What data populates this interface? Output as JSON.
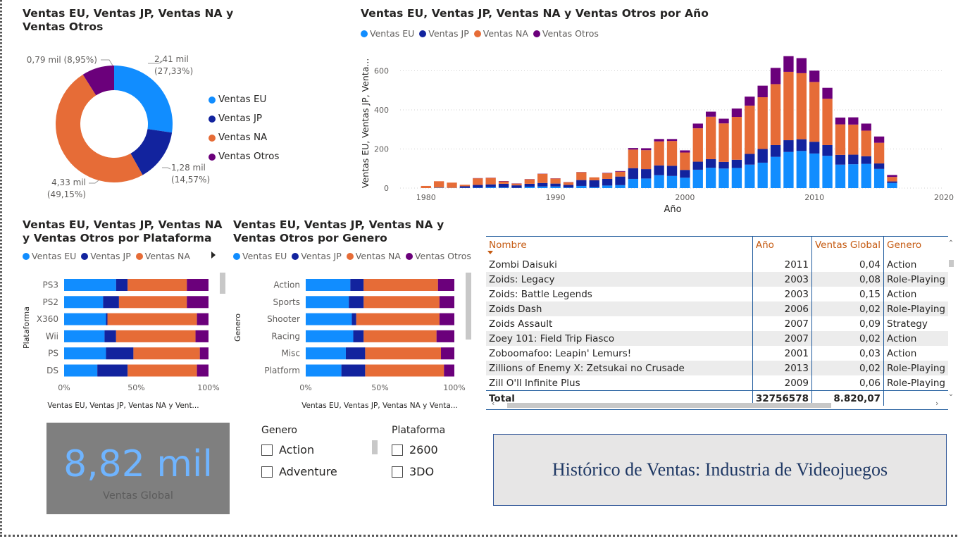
{
  "colors": {
    "eu": "#118dff",
    "jp": "#12239e",
    "na": "#e66c37",
    "otros": "#6b007b"
  },
  "legend_labels": {
    "eu": "Ventas EU",
    "jp": "Ventas JP",
    "na": "Ventas NA",
    "otros": "Ventas Otros"
  },
  "donut": {
    "title": "Ventas EU, Ventas JP, Ventas NA y Ventas Otros",
    "labels": {
      "otros": "0,79 mil (8,95%)",
      "eu_1": "2,41 mil",
      "eu_2": "(27,33%)",
      "jp_1": "1,28 mil",
      "jp_2": "(14,57%)",
      "na_1": "4,33 mil",
      "na_2": "(49,15%)"
    }
  },
  "year_chart": {
    "title": "Ventas EU, Ventas JP, Ventas NA y Ventas Otros por Año",
    "ylabel": "Ventas EU, Ventas JP, Venta...",
    "xlabel": "Año",
    "yticks": [
      "0",
      "200",
      "400",
      "600"
    ],
    "xticks": [
      "1980",
      "1990",
      "2000",
      "2010",
      "2020"
    ]
  },
  "platform_chart": {
    "title": "Ventas EU, Ventas JP, Ventas NA y Ventas Otros por Plataforma",
    "ylabel": "Plataforma",
    "xlabel": "Ventas EU, Ventas JP, Ventas NA y Vent...",
    "xticks": [
      "0%",
      "50%",
      "100%"
    ]
  },
  "genre_chart": {
    "title": "Ventas EU, Ventas JP, Ventas NA y Ventas Otros por Genero",
    "ylabel": "Genero",
    "xlabel": "Ventas EU, Ventas JP, Ventas NA y Venta...",
    "xticks": [
      "0%",
      "50%",
      "100%"
    ]
  },
  "chart_data": [
    {
      "type": "pie",
      "title": "Ventas EU, Ventas JP, Ventas NA y Ventas Otros",
      "categories": [
        "Ventas EU",
        "Ventas JP",
        "Ventas NA",
        "Ventas Otros"
      ],
      "values": [
        2.41,
        1.28,
        4.33,
        0.79
      ],
      "percent": [
        27.33,
        14.57,
        49.15,
        8.95
      ],
      "legend": "right"
    },
    {
      "type": "bar",
      "title": "Ventas EU, Ventas JP, Ventas NA y Ventas Otros por Año",
      "xlabel": "Año",
      "ylabel": "Ventas EU, Ventas JP, Venta...",
      "ylim": [
        0,
        700
      ],
      "xlim": [
        1978,
        2020
      ],
      "x": [
        1980,
        1981,
        1982,
        1983,
        1984,
        1985,
        1986,
        1987,
        1988,
        1989,
        1990,
        1991,
        1992,
        1993,
        1994,
        1995,
        1996,
        1997,
        1998,
        1999,
        2000,
        2001,
        2002,
        2003,
        2004,
        2005,
        2006,
        2007,
        2008,
        2009,
        2010,
        2011,
        2012,
        2013,
        2014,
        2015,
        2016
      ],
      "series": [
        {
          "name": "Ventas EU",
          "values": [
            0,
            2,
            1,
            1,
            2,
            5,
            3,
            1,
            7,
            8,
            8,
            3,
            11,
            4,
            13,
            15,
            47,
            49,
            66,
            62,
            53,
            94,
            104,
            100,
            103,
            120,
            130,
            160,
            185,
            190,
            177,
            165,
            120,
            122,
            124,
            98,
            26
          ]
        },
        {
          "name": "Ventas JP",
          "values": [
            0,
            0,
            0,
            8,
            14,
            14,
            19,
            13,
            15,
            18,
            15,
            13,
            30,
            36,
            34,
            44,
            55,
            48,
            50,
            52,
            40,
            41,
            44,
            34,
            42,
            55,
            70,
            60,
            60,
            60,
            60,
            55,
            50,
            49,
            39,
            28,
            8
          ]
        },
        {
          "name": "Ventas NA",
          "values": [
            11,
            33,
            27,
            8,
            34,
            33,
            12,
            9,
            23,
            47,
            26,
            14,
            40,
            15,
            29,
            25,
            95,
            97,
            123,
            127,
            89,
            171,
            217,
            197,
            219,
            247,
            265,
            312,
            350,
            338,
            306,
            237,
            156,
            154,
            131,
            106,
            23
          ]
        },
        {
          "name": "Ventas Otros",
          "values": [
            0,
            0,
            0,
            0,
            1,
            1,
            2,
            1,
            1,
            1,
            1,
            1,
            1,
            0,
            2,
            3,
            8,
            10,
            12,
            10,
            11,
            24,
            26,
            24,
            43,
            46,
            59,
            83,
            80,
            77,
            58,
            56,
            35,
            37,
            36,
            32,
            10
          ]
        }
      ]
    },
    {
      "type": "bar",
      "orientation": "horizontal",
      "stacked_percent": true,
      "title": "Ventas EU, Ventas JP, Ventas NA y Ventas Otros por Plataforma",
      "ylabel": "Plataforma",
      "categories": [
        "PS3",
        "PS2",
        "X360",
        "Wii",
        "PS",
        "DS"
      ],
      "series": [
        {
          "name": "Ventas EU",
          "values": [
            36,
            27,
            29,
            28,
            29,
            23
          ]
        },
        {
          "name": "Ventas JP",
          "values": [
            8,
            11,
            1,
            8,
            19,
            21
          ]
        },
        {
          "name": "Ventas NA",
          "values": [
            41,
            47,
            62,
            55,
            46,
            48
          ]
        }
      ]
    },
    {
      "type": "bar",
      "orientation": "horizontal",
      "stacked_percent": true,
      "title": "Ventas EU, Ventas JP, Ventas NA y Ventas Otros por Genero",
      "ylabel": "Genero",
      "categories": [
        "Action",
        "Sports",
        "Shooter",
        "Racing",
        "Misc",
        "Platform"
      ],
      "series": [
        {
          "name": "Ventas EU",
          "values": [
            30,
            29,
            31,
            32,
            27,
            24
          ]
        },
        {
          "name": "Ventas JP",
          "values": [
            9,
            10,
            3,
            7,
            13,
            16
          ]
        },
        {
          "name": "Ventas NA",
          "values": [
            50,
            51,
            56,
            49,
            51,
            53
          ]
        },
        {
          "name": "Ventas Otros",
          "values": [
            11,
            10,
            10,
            12,
            9,
            7
          ]
        }
      ]
    }
  ],
  "table": {
    "headers": [
      "Nombre",
      "Año",
      "Ventas Global",
      "Genero"
    ],
    "rows": [
      [
        "Zombi Daisuki",
        "2011",
        "0,04",
        "Action"
      ],
      [
        "Zoids: Legacy",
        "2003",
        "0,08",
        "Role-Playing"
      ],
      [
        "Zoids: Battle Legends",
        "2003",
        "0,15",
        "Action"
      ],
      [
        "Zoids Dash",
        "2006",
        "0,02",
        "Role-Playing"
      ],
      [
        "Zoids Assault",
        "2007",
        "0,09",
        "Strategy"
      ],
      [
        "Zoey 101: Field Trip Fiasco",
        "2007",
        "0,02",
        "Action"
      ],
      [
        "Zoboomafoo: Leapin' Lemurs!",
        "2001",
        "0,03",
        "Action"
      ],
      [
        "Zillions of Enemy X: Zetsukai no Crusade",
        "2013",
        "0,02",
        "Role-Playing"
      ],
      [
        "Zill O'll Infinite Plus",
        "2009",
        "0,06",
        "Role-Playing"
      ]
    ],
    "total": [
      "Total",
      "32756578",
      "8.820,07",
      ""
    ]
  },
  "card": {
    "value": "8,82 mil",
    "label": "Ventas Global"
  },
  "slicer_genero": {
    "title": "Genero",
    "options": [
      "Action",
      "Adventure"
    ]
  },
  "slicer_plataforma": {
    "title": "Plataforma",
    "options": [
      "2600",
      "3DO"
    ]
  },
  "banner": {
    "text": "Histórico de Ventas: Industria de Videojuegos"
  }
}
